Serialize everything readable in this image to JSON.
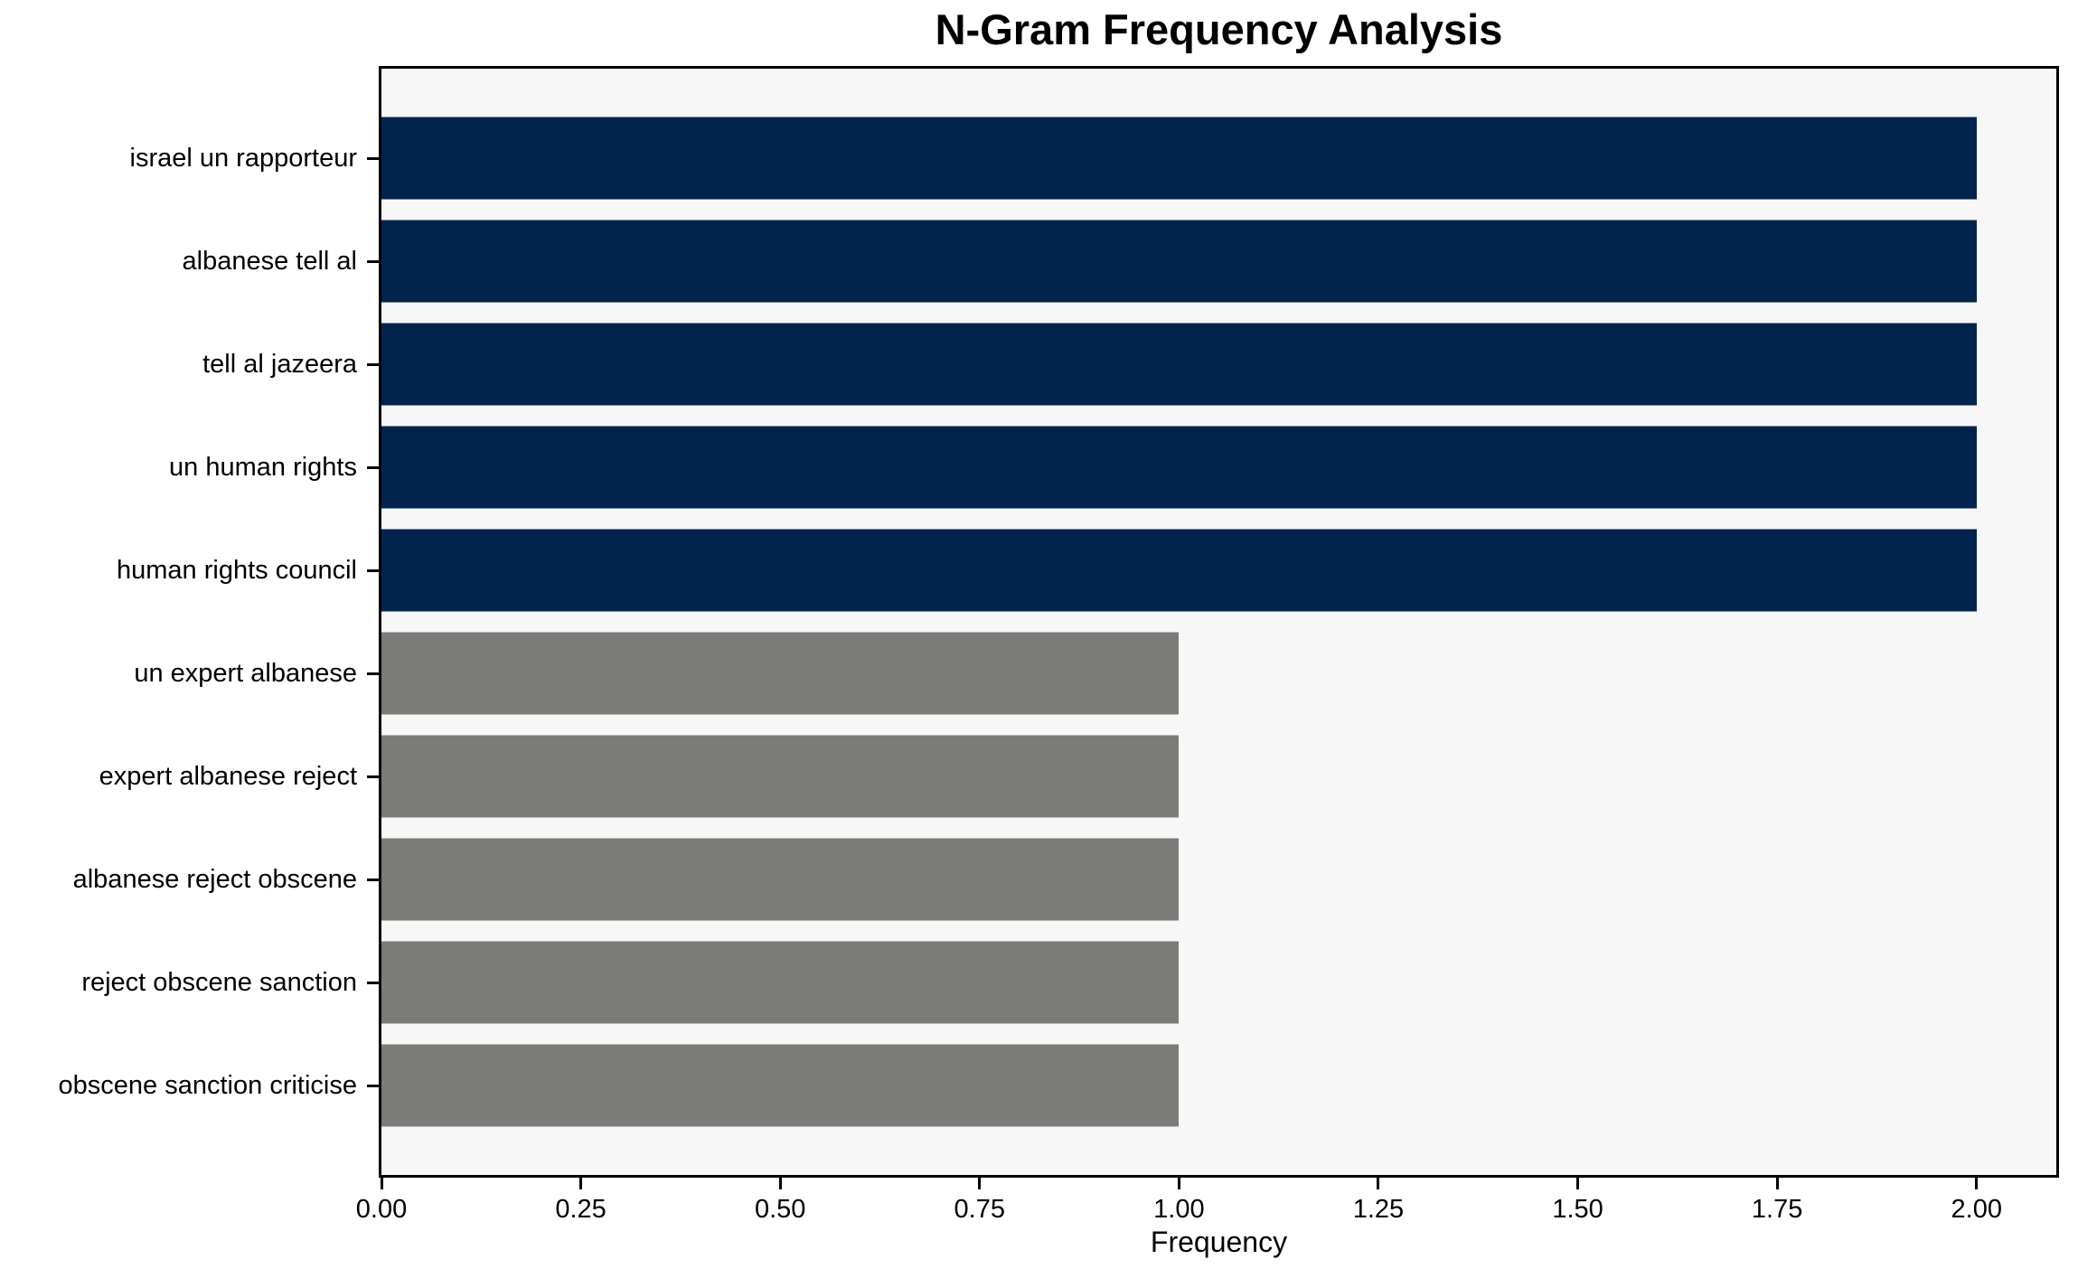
{
  "chart_data": {
    "type": "bar",
    "orientation": "horizontal",
    "title": "N-Gram Frequency Analysis",
    "xlabel": "Frequency",
    "ylabel": "",
    "categories": [
      "israel un rapporteur",
      "albanese tell al",
      "tell al jazeera",
      "un human rights",
      "human rights council",
      "un expert albanese",
      "expert albanese reject",
      "albanese reject obscene",
      "reject obscene sanction",
      "obscene sanction criticise"
    ],
    "values": [
      2,
      2,
      2,
      2,
      2,
      1,
      1,
      1,
      1,
      1
    ],
    "bar_colors": [
      "#01234d",
      "#01234d",
      "#01234d",
      "#01234d",
      "#01234d",
      "#7b7b78",
      "#7b7b78",
      "#7b7b78",
      "#7b7b78",
      "#7b7b78"
    ],
    "xlim": [
      0,
      2.1
    ],
    "xticks": [
      0.0,
      0.25,
      0.5,
      0.75,
      1.0,
      1.25,
      1.5,
      1.75,
      2.0
    ],
    "xtick_labels": [
      "0.00",
      "0.25",
      "0.50",
      "0.75",
      "1.00",
      "1.25",
      "1.50",
      "1.75",
      "2.00"
    ],
    "grid": false,
    "legend": "none",
    "colors": {
      "high_freq_bar": "#01234d",
      "low_freq_bar": "#7b7b78",
      "plot_background": "#f7f7f7",
      "figure_background": "#ffffff",
      "axis": "#000000"
    }
  }
}
